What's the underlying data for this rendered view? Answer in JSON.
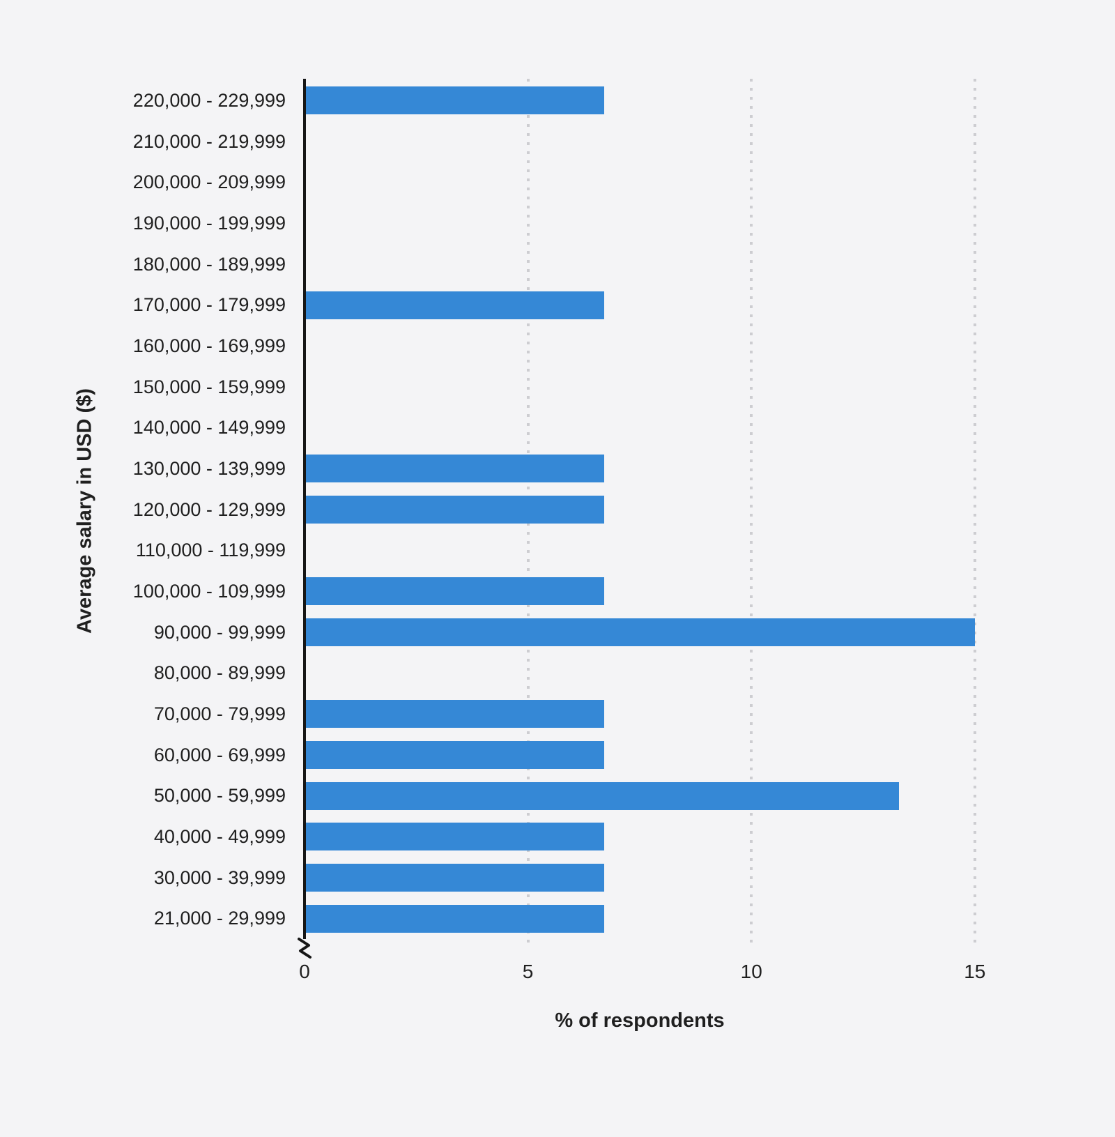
{
  "chart_data": {
    "type": "bar",
    "orientation": "horizontal",
    "title": "",
    "xlabel": "% of respondents",
    "ylabel": "Average salary in USD ($)",
    "categories": [
      "220,000 - 229,999",
      "210,000 - 219,999",
      "200,000 - 209,999",
      "190,000 - 199,999",
      "180,000 - 189,999",
      "170,000 - 179,999",
      "160,000 - 169,999",
      "150,000 - 159,999",
      "140,000 - 149,999",
      "130,000 - 139,999",
      "120,000 - 129,999",
      "110,000 - 119,999",
      "100,000 - 109,999",
      "90,000 - 99,999",
      "80,000 - 89,999",
      "70,000 - 79,999",
      "60,000 - 69,999",
      "50,000 - 59,999",
      "40,000 - 49,999",
      "30,000 - 39,999",
      "21,000 - 29,999"
    ],
    "values": [
      6.7,
      0,
      0,
      0,
      0,
      6.7,
      0,
      0,
      0,
      6.7,
      6.7,
      0,
      6.7,
      15,
      0,
      6.7,
      6.7,
      13.3,
      6.7,
      6.7,
      6.7
    ],
    "xticks": [
      0,
      5,
      10,
      15
    ],
    "xtick_labels": [
      "0",
      "5",
      "10",
      "15"
    ],
    "xlim": [
      0,
      16.5
    ],
    "grid": "dotted-vertical",
    "legend": "none",
    "axis_break": true,
    "colors": {
      "bar": "#3588d6",
      "background": "#f4f4f6",
      "axis": "#161616",
      "gridline": "#cdcdd1",
      "text": "#1f1f1f"
    }
  }
}
